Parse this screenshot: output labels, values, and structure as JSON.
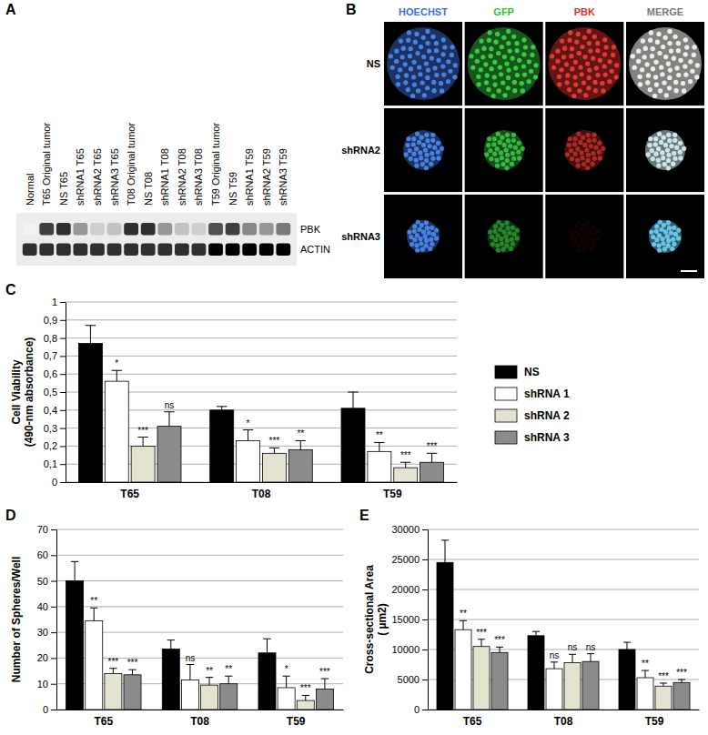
{
  "chart_data": [
    {
      "type": "bar",
      "annotations": [
        {
          "text": "C"
        }
      ],
      "ylabel": [
        "Cell Viability",
        "(490-nm absorbance)"
      ],
      "categories": [
        "T65",
        "T08",
        "T59"
      ],
      "ylim": [
        0,
        1
      ],
      "yticks": [
        0,
        {
          "value": 0.1,
          "label": "0,1"
        },
        {
          "value": 0.2,
          "label": "0,2"
        },
        {
          "value": 0.3,
          "label": "0,3"
        },
        {
          "value": 0.4,
          "label": "0,4"
        },
        {
          "value": 0.5,
          "label": "0,5"
        },
        {
          "value": 0.6,
          "label": "0,6"
        },
        {
          "value": 0.7,
          "label": "0,7"
        },
        {
          "value": 0.8,
          "label": "0,8"
        },
        {
          "value": 0.9,
          "label": "0,9"
        },
        1
      ],
      "grid": true,
      "legend": "right",
      "series": [
        {
          "name": "NS",
          "color": "#000000",
          "values": [
            0.77,
            0.4,
            0.41
          ],
          "errors": [
            0.1,
            0.02,
            0.09
          ]
        },
        {
          "name": "shRNA 1",
          "color": "#ffffff",
          "values": [
            0.56,
            0.23,
            0.17
          ],
          "errors": [
            0.06,
            0.06,
            0.05
          ],
          "significance": [
            "*",
            "*",
            "**"
          ]
        },
        {
          "name": "shRNA 2",
          "color": "#e4e3cf",
          "values": [
            0.2,
            0.16,
            0.08
          ],
          "errors": [
            0.05,
            0.03,
            0.03
          ],
          "significance": [
            "***",
            "***",
            "***"
          ]
        },
        {
          "name": "shRNA 3",
          "color": "#8c8c8c",
          "values": [
            0.31,
            0.18,
            0.11
          ],
          "errors": [
            0.08,
            0.05,
            0.05
          ],
          "significance": [
            "ns",
            "**",
            "***"
          ]
        }
      ]
    },
    {
      "type": "bar",
      "annotations": [
        {
          "text": "D"
        }
      ],
      "ylabel": [
        "Number of Spheres/Well"
      ],
      "categories": [
        "T65",
        "T08",
        "T59"
      ],
      "ylim": [
        0,
        70
      ],
      "yticks": [
        0,
        10,
        20,
        30,
        40,
        50,
        60,
        70
      ],
      "grid": true,
      "series": [
        {
          "color": "#000000",
          "values": [
            50,
            23.5,
            22
          ],
          "errors": [
            7.5,
            3.5,
            5.5
          ]
        },
        {
          "color": "#ffffff",
          "values": [
            34.5,
            11.5,
            8.5
          ],
          "errors": [
            5,
            6,
            4.5
          ],
          "significance": [
            "**",
            "ns",
            "*"
          ]
        },
        {
          "color": "#e4e3cf",
          "values": [
            14,
            9.5,
            3.5
          ],
          "errors": [
            2,
            3,
            2
          ],
          "significance": [
            "***",
            "**",
            "***"
          ]
        },
        {
          "color": "#8c8c8c",
          "values": [
            13.5,
            10,
            8
          ],
          "errors": [
            2,
            3,
            4
          ],
          "significance": [
            "***",
            "**",
            "***"
          ]
        }
      ]
    },
    {
      "type": "bar",
      "annotations": [
        {
          "text": "E"
        }
      ],
      "ylabel": [
        "Cross-sectional Area",
        "( µm2)"
      ],
      "categories": [
        "T65",
        "T08",
        "T59"
      ],
      "ylim": [
        0,
        30000
      ],
      "yticks": [
        0,
        5000,
        10000,
        15000,
        20000,
        25000,
        30000
      ],
      "grid": true,
      "series": [
        {
          "color": "#000000",
          "values": [
            24500,
            12300,
            10000
          ],
          "errors": [
            3700,
            700,
            1200
          ]
        },
        {
          "color": "#ffffff",
          "values": [
            13300,
            6800,
            5300
          ],
          "errors": [
            1500,
            1100,
            1200
          ],
          "significance": [
            "**",
            "ns",
            "**"
          ]
        },
        {
          "color": "#e4e3cf",
          "values": [
            10500,
            7800,
            3900
          ],
          "errors": [
            1200,
            1400,
            500
          ],
          "significance": [
            "***",
            "ns",
            "***"
          ]
        },
        {
          "color": "#8c8c8c",
          "values": [
            9500,
            8000,
            4500
          ],
          "errors": [
            900,
            1300,
            500
          ],
          "significance": [
            "***",
            "ns",
            "***"
          ]
        }
      ]
    }
  ],
  "blot": {
    "panel": "A",
    "lanes": [
      "Normal",
      "T65 Original tumor",
      "NS T65",
      "shRNA1 T65",
      "shRNA2 T65",
      "shRNA3 T65",
      "T08 Original tumor",
      "NS T08",
      "shRNA1 T08",
      "shRNA2 T08",
      "shRNA3 T08",
      "T59 Original tumor",
      "NS T59",
      "shRNA1 T59",
      "shRNA2 T59",
      "shRNA3 T59"
    ],
    "bands": [
      {
        "label": "PBK",
        "intensity": [
          0.1,
          0.8,
          0.85,
          0.5,
          0.3,
          0.35,
          0.85,
          0.85,
          0.5,
          0.35,
          0.3,
          0.75,
          0.8,
          0.55,
          0.5,
          0.6
        ]
      },
      {
        "label": "ACTIN",
        "intensity": [
          0.85,
          0.85,
          0.85,
          0.85,
          0.85,
          0.85,
          0.85,
          0.85,
          0.85,
          0.85,
          0.85,
          1,
          1,
          1,
          1,
          1
        ]
      }
    ]
  },
  "micrographs": {
    "panel": "B",
    "columns": [
      {
        "label": "HOECHST",
        "color": "#3b6fe0"
      },
      {
        "label": "GFP",
        "color": "#2fbf3a"
      },
      {
        "label": "PBK",
        "color": "#e0302a"
      },
      {
        "label": "MERGE",
        "color": "#7a7a7a"
      }
    ],
    "rows": [
      {
        "label": "NS",
        "intensity": [
          1,
          1,
          1,
          1
        ]
      },
      {
        "label": "shRNA2",
        "intensity": [
          1,
          0.9,
          0.7,
          1
        ]
      },
      {
        "label": "shRNA3",
        "intensity": [
          1,
          0.6,
          0.05,
          1
        ]
      }
    ]
  }
}
